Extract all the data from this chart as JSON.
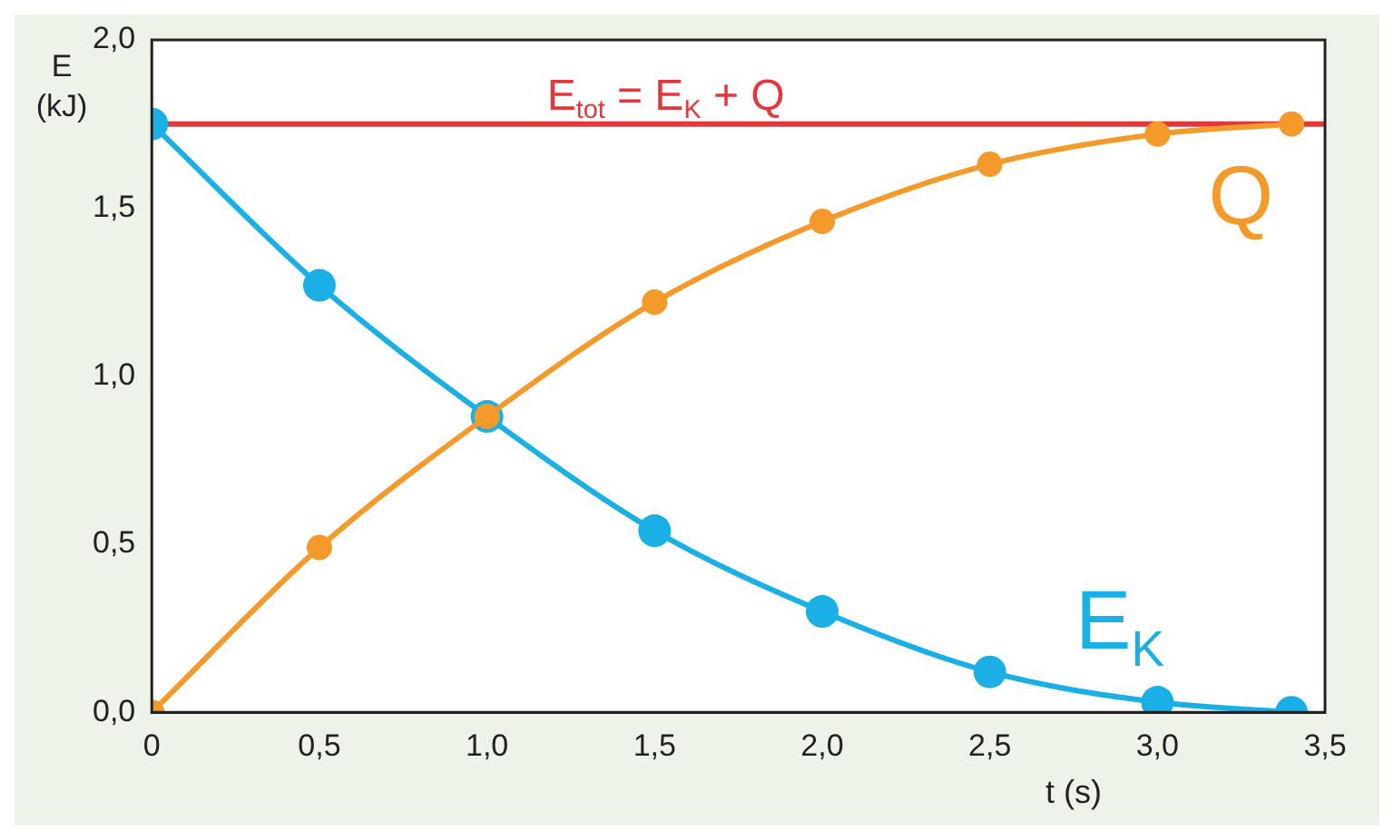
{
  "chart_data": {
    "type": "line",
    "xlabel": "t (s)",
    "ylabel": "E (kJ)",
    "x": [
      0,
      0.5,
      1.0,
      1.5,
      2.0,
      2.5,
      3.0,
      3.4
    ],
    "xlim": [
      0,
      3.5
    ],
    "xticks": [
      {
        "value": 0,
        "label": "0"
      },
      {
        "value": 0.5,
        "label": "0,5"
      },
      {
        "value": 1,
        "label": "1,0"
      },
      {
        "value": 1.5,
        "label": "1,5"
      },
      {
        "value": 2,
        "label": "2,0"
      },
      {
        "value": 2.5,
        "label": "2,5"
      },
      {
        "value": 3,
        "label": "3,0"
      },
      {
        "value": 3.5,
        "label": "3,5"
      }
    ],
    "ylim": [
      0,
      2
    ],
    "yticks": [
      {
        "value": 0,
        "label": "0,0"
      },
      {
        "value": 0.5,
        "label": "0,5"
      },
      {
        "value": 1,
        "label": "1,0"
      },
      {
        "value": 1.5,
        "label": "1,5"
      },
      {
        "value": 2,
        "label": "2,0"
      }
    ],
    "series": [
      {
        "name": "E$_{K}$",
        "color": "#1ab0e6",
        "values": [
          1.75,
          1.27,
          0.88,
          0.54,
          0.3,
          0.12,
          0.03,
          0.0
        ]
      },
      {
        "name": "Q",
        "color": "#f39a2a",
        "values": [
          0,
          0.49,
          0.88,
          1.22,
          1.46,
          1.63,
          1.72,
          1.75
        ]
      }
    ],
    "ref_lines": [
      {
        "axis": "y",
        "value": 1.75,
        "label": "E$_{tot}$ = E$_{K}$ + Q",
        "color": "#e0383c"
      }
    ],
    "marker": "circle",
    "line_style": "solid",
    "grid": false,
    "legend": false
  }
}
